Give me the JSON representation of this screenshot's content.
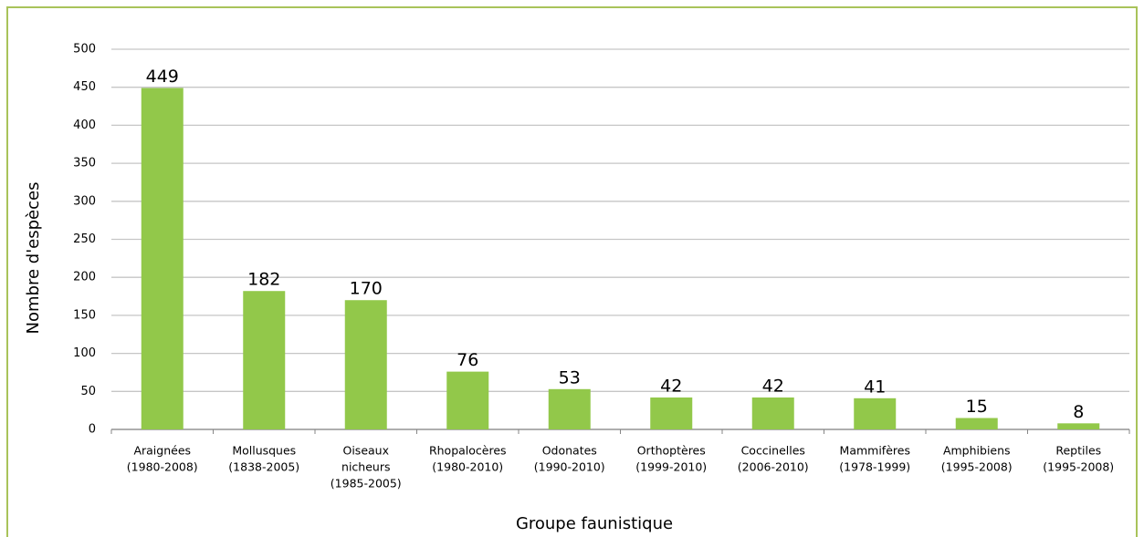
{
  "chart_data": {
    "type": "bar",
    "x_label": "Groupe faunistique",
    "y_label": "Nombre d'espèces",
    "categories": [
      [
        "Araignées",
        "(1980-2008)"
      ],
      [
        "Mollusques",
        "(1838-2005)"
      ],
      [
        "Oiseaux",
        "nicheurs",
        "(1985-2005)"
      ],
      [
        "Rhopalocères",
        "(1980-2010)"
      ],
      [
        "Odonates",
        "(1990-2010)"
      ],
      [
        "Orthoptères",
        "(1999-2010)"
      ],
      [
        "Coccinelles",
        "(2006-2010)"
      ],
      [
        "Mammifères",
        "(1978-1999)"
      ],
      [
        "Amphibiens",
        "(1995-2008)"
      ],
      [
        "Reptiles",
        "(1995-2008)"
      ]
    ],
    "values": [
      449,
      182,
      170,
      76,
      53,
      42,
      42,
      41,
      15,
      8
    ],
    "color": "#92c84a",
    "ylim": [
      0,
      500
    ],
    "yticks": [
      0,
      50,
      100,
      150,
      200,
      250,
      300,
      350,
      400,
      450,
      500
    ],
    "grid": true
  }
}
